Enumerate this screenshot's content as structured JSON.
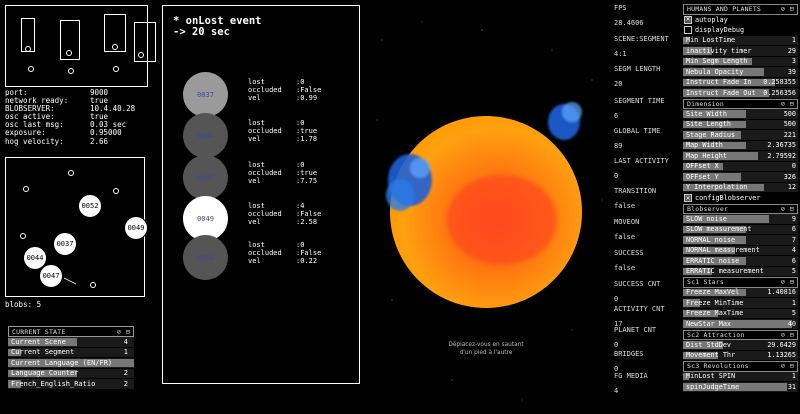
{
  "net_info": [
    {
      "key": "port:",
      "value": "9000"
    },
    {
      "key": "network ready:",
      "value": "true"
    },
    {
      "key": "BLOBSERVER:",
      "value": "10.4.40.28"
    },
    {
      "key": "osc active:",
      "value": "true"
    },
    {
      "key": "osc last msg:",
      "value": "0.03 sec"
    },
    {
      "key": "exposure:",
      "value": "0.95000"
    },
    {
      "key": "hog velocity:",
      "value": "2.66"
    }
  ],
  "blob_map": {
    "blobs": [
      "0052",
      "0049",
      "0037",
      "0044",
      "0047"
    ]
  },
  "blobs_count": "blobs: 5",
  "state_panel": {
    "title": "CURRENT STATE",
    "tools": "⊘ ⊟",
    "rows": [
      {
        "label": "Current Scene",
        "value": "4",
        "fill": 0.55
      },
      {
        "label": "Current Segment",
        "value": "1",
        "fill": 0.1
      },
      {
        "label": "Current Language (EN/FR)",
        "value": "",
        "fill": 1.0
      },
      {
        "label": "Language Counter",
        "value": "2",
        "fill": 0.55
      },
      {
        "label": "French_English_Ratio",
        "value": "2",
        "fill": 0.1
      }
    ]
  },
  "event_panel": {
    "title": "* onLost event\n-> 20 sec",
    "events": [
      {
        "id": "0037",
        "lost": "0",
        "occluded": "False",
        "vel": "0.99",
        "fill": "#9a9a9a"
      },
      {
        "id": "0044",
        "lost": "0",
        "occluded": "true",
        "vel": "1.78",
        "fill": "#555555"
      },
      {
        "id": "0047",
        "lost": "0",
        "occluded": "true",
        "vel": "7.75",
        "fill": "#555555"
      },
      {
        "id": "0049",
        "lost": "4",
        "occluded": "False",
        "vel": "2.58",
        "fill": "#ffffff"
      },
      {
        "id": "0052",
        "lost": "0",
        "occluded": "False",
        "vel": "0.22",
        "fill": "#555555"
      }
    ],
    "labels": {
      "lost": "lost",
      "occluded": "occluded",
      "vel": "vel"
    }
  },
  "scene": {
    "caption_line1": "Déplacez-vous en sautant",
    "caption_line2": "d'un pied à l'autre"
  },
  "metrics": [
    {
      "label": "FPS",
      "value": "28.4606"
    },
    {
      "label": "SCENE:SEGMENT",
      "value": "4:1"
    },
    {
      "label": "SEGM LENGTH",
      "value": "20"
    },
    {
      "label": "SEGMENT TIME",
      "value": "6"
    },
    {
      "label": "GLOBAL TIME",
      "value": "89"
    },
    {
      "label": "LAST ACTIVITY",
      "value": "0"
    },
    {
      "label": "TRANSITION",
      "value": "false"
    },
    {
      "label": "MOVEON",
      "value": "false"
    },
    {
      "label": "SUCCESS",
      "value": "false"
    },
    {
      "label": "SUCCESS CNT",
      "value": "0"
    },
    {
      "label": "ACTIVITY CNT",
      "value": "17"
    },
    {
      "label": "PLANET CNT",
      "value": "0"
    },
    {
      "label": "BRIDGES",
      "value": "0"
    },
    {
      "label": "FG MEDIA",
      "value": "4"
    }
  ],
  "controls": {
    "humans": {
      "title": "HUMANS AND PLANETS",
      "tools": "⊘ ⊟",
      "toggles": [
        {
          "label": "autoplay",
          "checked": true
        },
        {
          "label": "displayDebug",
          "checked": false
        }
      ],
      "rows": [
        {
          "label": "Min LostTime",
          "value": "1",
          "fill": 0.05
        },
        {
          "label": "inactivity timer",
          "value": "29",
          "fill": 0.25
        },
        {
          "label": "Min Segm Length",
          "value": "3",
          "fill": 0.6
        },
        {
          "label": "Nebula Opacity",
          "value": "39",
          "fill": 0.7
        },
        {
          "label": "Instruct Fade In",
          "value": "0.258355",
          "fill": 0.8
        },
        {
          "label": "Instruct Fade Out",
          "value": "0.256356",
          "fill": 0.75
        }
      ]
    },
    "dimension": {
      "title": "Dimension",
      "tools": "⊘ ⊟",
      "rows": [
        {
          "label": "Site Width",
          "value": "500",
          "fill": 0.55
        },
        {
          "label": "Site Length",
          "value": "500",
          "fill": 0.55
        },
        {
          "label": "Stage Radius",
          "value": "221",
          "fill": 0.5
        },
        {
          "label": "Map Width",
          "value": "2.36735",
          "fill": 0.55
        },
        {
          "label": "Map Height",
          "value": "2.79592",
          "fill": 0.65
        },
        {
          "label": "OFFset X",
          "value": "0",
          "fill": 0.35
        },
        {
          "label": "OFFset Y",
          "value": "326",
          "fill": 0.5
        },
        {
          "label": "Y Interpolation",
          "value": "12",
          "fill": 0.7
        }
      ],
      "toggles": [
        {
          "label": "configBlobserver",
          "checked": true
        }
      ]
    },
    "blobserver": {
      "title": "Blobserver",
      "tools": "⊘ ⊟",
      "rows": [
        {
          "label": "SLOW noise",
          "value": "9",
          "fill": 0.75
        },
        {
          "label": "SLOW measurement",
          "value": "6",
          "fill": 0.55
        },
        {
          "label": "NORMAL noise",
          "value": "7",
          "fill": 0.55
        },
        {
          "label": "NORMAL measurement",
          "value": "4",
          "fill": 0.45
        },
        {
          "label": "ERRATIC noise",
          "value": "6",
          "fill": 0.55
        },
        {
          "label": "ERRATIC measurement",
          "value": "5",
          "fill": 0.25
        }
      ]
    },
    "stars": {
      "title": "Sc1 Stars",
      "tools": "⊘ ⊟",
      "rows": [
        {
          "label": "Freeze MaxVel",
          "value": "1.40816",
          "fill": 0.55
        },
        {
          "label": "Freeze MinTime",
          "value": "1",
          "fill": 0.15
        },
        {
          "label": "Freeze MaxTime",
          "value": "5",
          "fill": 0.3
        },
        {
          "label": "NewStar Max",
          "value": "40",
          "fill": 0.95
        }
      ]
    },
    "attraction": {
      "title": "Sc2 Attraction",
      "tools": "⊘ ⊟",
      "rows": [
        {
          "label": "Dist StdDev",
          "value": "29.6429",
          "fill": 0.35
        },
        {
          "label": "Movement Thr",
          "value": "1.13265",
          "fill": 0.3
        }
      ]
    },
    "revolutions": {
      "title": "Sc3 Revolutions",
      "tools": "⊘ ⊟",
      "rows": [
        {
          "label": "MinLost SPIN",
          "value": "1",
          "fill": 0.05
        },
        {
          "label": "spinJudgeTime",
          "value": "31",
          "fill": 0.9
        }
      ]
    }
  }
}
